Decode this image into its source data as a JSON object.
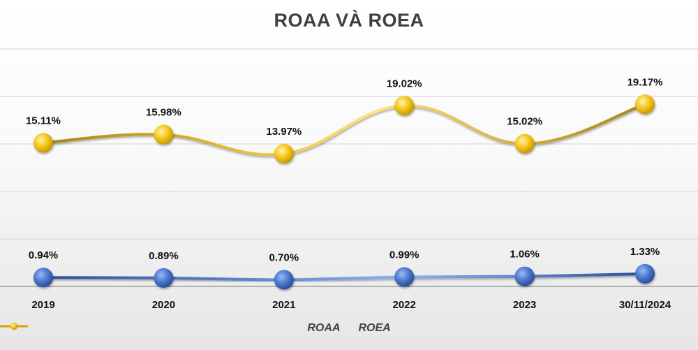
{
  "chart_data": {
    "type": "line",
    "title": "ROAA VÀ ROEA",
    "categories": [
      "2019",
      "2020",
      "2021",
      "2022",
      "2023",
      "30/11/2024"
    ],
    "series": [
      {
        "name": "ROAA",
        "values": [
          0.94,
          0.89,
          0.7,
          0.99,
          1.06,
          1.33
        ],
        "labels": [
          "0.94%",
          "0.89%",
          "0.70%",
          "0.99%",
          "1.06%",
          "1.33%"
        ],
        "color": "#4472C4"
      },
      {
        "name": "ROEA",
        "values": [
          15.11,
          15.98,
          13.97,
          19.02,
          15.02,
          19.17
        ],
        "labels": [
          "15.11%",
          "15.98%",
          "13.97%",
          "19.02%",
          "15.02%",
          "19.17%"
        ],
        "color": "#FFC000"
      }
    ],
    "xlabel": "",
    "ylabel": "",
    "ylim": [
      0,
      25
    ],
    "grid": true,
    "legend": "bottom-center"
  }
}
